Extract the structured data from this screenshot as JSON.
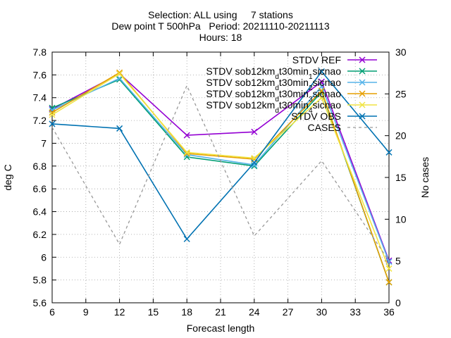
{
  "chart_data": {
    "type": "line",
    "title_lines": [
      "Selection: ALL using     7 stations",
      "Dew point T 500hPa   Period: 20211110-20211113",
      "Hours: 18"
    ],
    "xlabel": "Forecast length",
    "ylabel": "deg C",
    "y2label": "No cases",
    "x": [
      6,
      12,
      18,
      24,
      30,
      36
    ],
    "xlim": [
      6,
      36
    ],
    "xticks": [
      6,
      9,
      12,
      15,
      18,
      21,
      24,
      27,
      30,
      33,
      36
    ],
    "ylim": [
      5.6,
      7.8
    ],
    "yticks": [
      "5.6",
      "5.8",
      "6",
      "6.2",
      "6.4",
      "6.6",
      "6.8",
      "7",
      "7.2",
      "7.4",
      "7.6",
      "7.8"
    ],
    "y2lim": [
      0,
      30
    ],
    "y2ticks": [
      0,
      5,
      10,
      15,
      20,
      25,
      30
    ],
    "legend_position": "top-right",
    "series": [
      {
        "name": "STDV REF",
        "legend_parts": [
          {
            "t": "STDV REF"
          }
        ],
        "color": "#9400d3",
        "marker": "x",
        "axis": "y",
        "values": [
          7.3,
          7.61,
          7.07,
          7.1,
          7.54,
          5.97
        ]
      },
      {
        "name": "STDV sob12km_dt30min_1sic_nao",
        "legend_parts": [
          {
            "t": "STDV sob12km"
          },
          {
            "t": "d",
            "sub": true
          },
          {
            "t": "t30min"
          },
          {
            "t": "1",
            "sub": true
          },
          {
            "t": "sic"
          },
          {
            "t": "",
            "sub": true
          },
          {
            "t": "nao"
          }
        ],
        "color": "#009e73",
        "marker": "x",
        "axis": "y",
        "values": [
          7.31,
          7.56,
          6.88,
          6.8,
          7.45,
          5.78
        ]
      },
      {
        "name": "STDV sob12km_dt30min_2sic_nao",
        "legend_parts": [
          {
            "t": "STDV sob12km"
          },
          {
            "t": "d",
            "sub": true
          },
          {
            "t": "t30min"
          },
          {
            "t": "2",
            "sub": true
          },
          {
            "t": "sic"
          },
          {
            "t": "",
            "sub": true
          },
          {
            "t": "nao"
          }
        ],
        "color": "#56b4e9",
        "marker": "x",
        "axis": "y",
        "values": [
          7.29,
          7.57,
          6.9,
          6.81,
          7.5,
          5.96
        ]
      },
      {
        "name": "STDV sob12km_dt30min_3sic_nao",
        "legend_parts": [
          {
            "t": "STDV sob12km"
          },
          {
            "t": "d",
            "sub": true
          },
          {
            "t": "t30min"
          },
          {
            "t": "3",
            "sub": true
          },
          {
            "t": "sic"
          },
          {
            "t": "",
            "sub": true
          },
          {
            "t": "nao"
          }
        ],
        "color": "#e69f00",
        "marker": "x",
        "axis": "y",
        "values": [
          7.27,
          7.62,
          6.91,
          6.86,
          7.46,
          5.78
        ]
      },
      {
        "name": "STDV sob12km_dt30min_4sic_nao",
        "legend_parts": [
          {
            "t": "STDV sob12km"
          },
          {
            "t": "d",
            "sub": true
          },
          {
            "t": "t30min"
          },
          {
            "t": "4",
            "sub": true
          },
          {
            "t": "sic"
          },
          {
            "t": "",
            "sub": true
          },
          {
            "t": "nao"
          }
        ],
        "color": "#f0e442",
        "marker": "x",
        "axis": "y",
        "values": [
          7.25,
          7.61,
          6.92,
          6.87,
          7.4,
          5.9
        ]
      },
      {
        "name": "STDV OBS",
        "legend_parts": [
          {
            "t": "STDV OBS"
          }
        ],
        "color": "#0072b2",
        "marker": "x",
        "axis": "y",
        "values": [
          7.17,
          7.13,
          6.16,
          6.83,
          7.63,
          6.92
        ]
      },
      {
        "name": "CASES",
        "legend_parts": [
          {
            "t": "CASES"
          }
        ],
        "color": "#999999",
        "marker": "none",
        "dash": true,
        "axis": "y2",
        "values": [
          21,
          7,
          26,
          8,
          17,
          5
        ]
      }
    ]
  }
}
